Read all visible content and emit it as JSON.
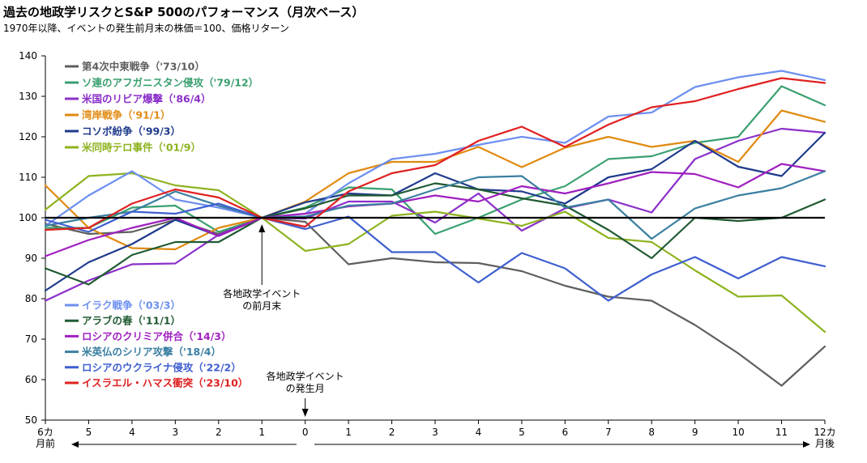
{
  "title": "過去の地政学リスクとS&P 500のパフォーマンス（月次ベース）",
  "subtitle": "1970年以降、イベントの発生前月末の株価＝100、価格リターン",
  "colors": {
    "baseline": "#000000",
    "grid": "#d9d9d9"
  },
  "chart_data": {
    "type": "line",
    "x": [
      -6,
      -5,
      -4,
      -3,
      -2,
      -1,
      0,
      1,
      2,
      3,
      4,
      5,
      6,
      7,
      8,
      9,
      10,
      11,
      12
    ],
    "xtick_labels": [
      "6カ月前",
      "5",
      "4",
      "3",
      "2",
      "1",
      "0",
      "1",
      "2",
      "3",
      "4",
      "5",
      "6",
      "7",
      "8",
      "9",
      "10",
      "11",
      "12カ月後"
    ],
    "ylim": [
      50,
      140
    ],
    "yticks": [
      50,
      60,
      70,
      80,
      90,
      100,
      110,
      120,
      130,
      140
    ],
    "baseline": 100,
    "grid": false,
    "legend_position": "left",
    "annotations": [
      {
        "text": "各地政学イベント\nの前月末",
        "x": -1,
        "y": 100
      },
      {
        "text": "各地政学イベント\nの発生月",
        "x": 0,
        "y": 50
      }
    ],
    "series": [
      {
        "name": "第4次中東戦争（'73/10）",
        "color": "#5f5f5f",
        "values": [
          98.5,
          96.0,
          96.5,
          99.5,
          96.0,
          100,
          99.0,
          88.5,
          90.0,
          89.0,
          88.8,
          86.8,
          83.2,
          80.5,
          79.5,
          73.5,
          66.5,
          58.5,
          68.2
        ]
      },
      {
        "name": "ソ連のアフガニスタン侵攻（'79/12）",
        "color": "#3aa06f",
        "values": [
          97.5,
          97.5,
          102.5,
          103.0,
          96.5,
          100,
          102.5,
          107.5,
          107.0,
          96.0,
          100.0,
          104.5,
          107.8,
          114.5,
          115.2,
          118.5,
          120.0,
          132.5,
          127.8
        ]
      },
      {
        "name": "米国のリビア爆撃（'86/4）",
        "color": "#8b2fc9",
        "values": [
          79.5,
          84.5,
          88.5,
          88.7,
          95.8,
          100,
          99.8,
          104.0,
          104.0,
          98.8,
          106.0,
          96.8,
          102.3,
          104.5,
          101.3,
          114.5,
          119.0,
          122.0,
          121.0
        ]
      },
      {
        "name": "湾岸戦争（'91/1）",
        "color": "#e08a10",
        "values": [
          108.0,
          97.5,
          92.5,
          92.2,
          97.5,
          100,
          104.0,
          111.0,
          113.8,
          113.8,
          117.5,
          112.5,
          117.3,
          120.0,
          117.5,
          119.0,
          113.8,
          126.5,
          123.7
        ]
      },
      {
        "name": "コソボ紛争（'99/3）",
        "color": "#1f3a8c",
        "values": [
          82.0,
          89.0,
          93.5,
          99.5,
          95.5,
          100,
          103.8,
          106.0,
          105.5,
          111.0,
          107.0,
          106.5,
          103.5,
          110.0,
          112.0,
          119.0,
          112.6,
          110.3,
          121.0
        ]
      },
      {
        "name": "米同時テロ事件（'01/9）",
        "color": "#8db31f",
        "values": [
          102.0,
          110.3,
          111.0,
          108.0,
          106.8,
          100,
          91.8,
          93.5,
          100.5,
          101.5,
          99.8,
          98.0,
          101.5,
          95.0,
          94.0,
          87.0,
          80.5,
          80.8,
          71.8
        ]
      },
      {
        "name": "イラク戦争（'03/3）",
        "color": "#6d8ff0",
        "values": [
          98.0,
          105.5,
          111.5,
          104.5,
          102.5,
          100,
          101.0,
          108.5,
          114.5,
          115.8,
          118.0,
          120.0,
          118.5,
          125.0,
          126.0,
          132.3,
          134.7,
          136.3,
          134.0
        ]
      },
      {
        "name": "アラブの春（'11/1）",
        "color": "#1f5a32",
        "values": [
          87.5,
          83.5,
          90.8,
          94.0,
          94.0,
          100,
          102.3,
          105.5,
          105.5,
          108.5,
          107.0,
          104.8,
          103.0,
          97.0,
          90.0,
          100.0,
          99.2,
          100.0,
          104.5
        ]
      },
      {
        "name": "ロシアのクリミア併合（'14/3）",
        "color": "#a020c0",
        "values": [
          90.5,
          94.5,
          97.5,
          100.0,
          95.5,
          100,
          101.0,
          102.8,
          103.5,
          105.5,
          104.0,
          107.8,
          106.0,
          108.5,
          111.3,
          110.8,
          107.5,
          113.3,
          111.5
        ]
      },
      {
        "name": "米英仏のシリア攻撃（'18/4）",
        "color": "#3a7fa0",
        "values": [
          98.0,
          100.0,
          101.5,
          106.5,
          103.0,
          100,
          100.3,
          103.0,
          103.5,
          107.0,
          110.0,
          110.3,
          102.5,
          104.5,
          94.8,
          102.3,
          105.5,
          107.3,
          111.5
        ]
      },
      {
        "name": "ロシアのウクライナ侵攻（'22/2）",
        "color": "#3f5fd0",
        "values": [
          99.5,
          96.5,
          101.5,
          101.0,
          103.5,
          100,
          97.2,
          100.3,
          91.5,
          91.5,
          84.0,
          91.3,
          87.5,
          79.5,
          86.0,
          90.3,
          85.0,
          90.3,
          88.0
        ]
      },
      {
        "name": "イスラエル・ハマス衝突（'23/10）",
        "color": "#e02020",
        "values": [
          97.0,
          97.5,
          103.5,
          107.0,
          105.0,
          100,
          97.8,
          106.5,
          111.0,
          113.0,
          119.0,
          122.5,
          117.5,
          123.0,
          127.3,
          128.8,
          131.8,
          134.5,
          133.3
        ]
      }
    ]
  }
}
